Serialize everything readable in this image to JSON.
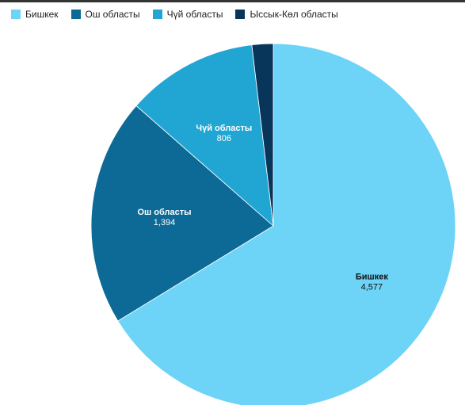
{
  "chart_data": {
    "type": "pie",
    "title": "",
    "legend_position": "top-left",
    "slices": [
      {
        "label": "Бишкек",
        "value": 4577,
        "value_label": "4,577",
        "color": "#6dd3f7",
        "label_color": "#111111"
      },
      {
        "label": "Ош областы",
        "value": 1394,
        "value_label": "1,394",
        "color": "#0d6a96",
        "label_color": "#ffffff"
      },
      {
        "label": "Чүй областы",
        "value": 806,
        "value_label": "806",
        "color": "#21a6d4",
        "label_color": "#ffffff"
      },
      {
        "label": "Ысcык-Көл областы",
        "value": 130,
        "value_label": "",
        "color": "#08355a",
        "label_color": "#ffffff"
      }
    ]
  }
}
